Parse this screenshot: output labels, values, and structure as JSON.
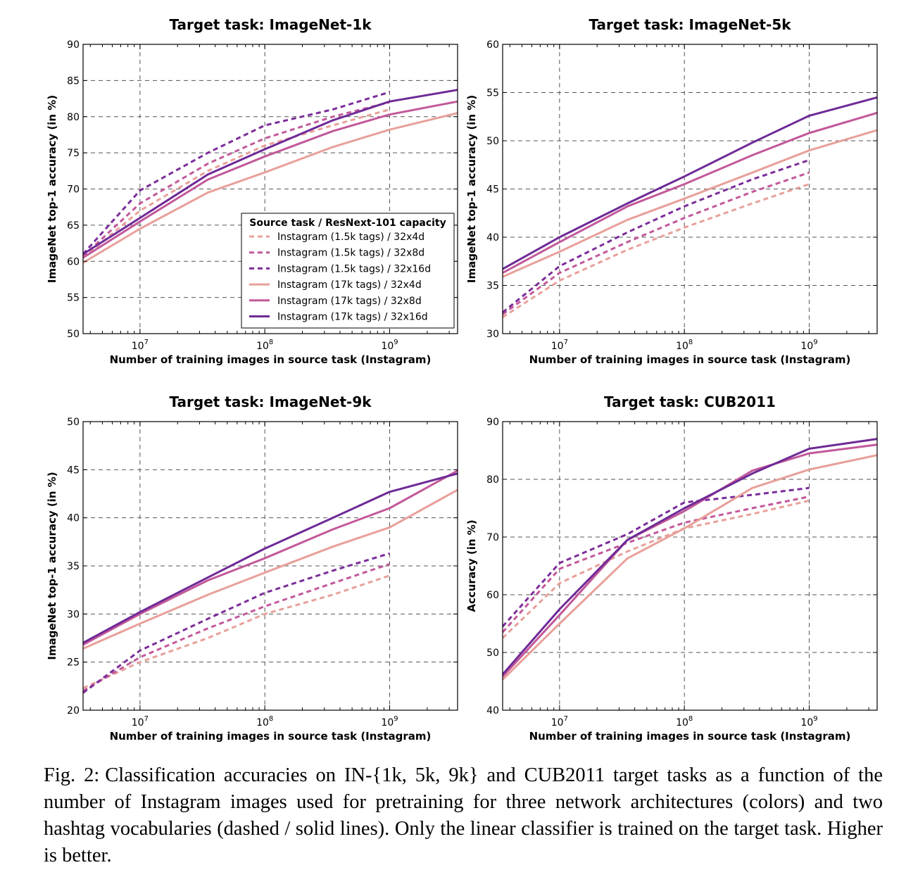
{
  "chart_data": [
    {
      "type": "line",
      "title": "Target task: ImageNet-1k",
      "xlabel": "Number of training images in source task (Instagram)",
      "ylabel": "ImageNet top-1 accuracy (in %)",
      "x_scale": "log",
      "xlim": [
        3500000,
        3500000000
      ],
      "ylim": [
        50,
        90
      ],
      "x_ticks": [
        10000000,
        100000000,
        1000000000
      ],
      "x_tick_labels": [
        [
          "10",
          "7"
        ],
        [
          "10",
          "8"
        ],
        [
          "10",
          "9"
        ]
      ],
      "y_ticks": [
        50,
        55,
        60,
        65,
        70,
        75,
        80,
        85,
        90
      ],
      "grid": true,
      "legend": {
        "title": "Source task / ResNext-101 capacity",
        "placement": "lower right",
        "entries": [
          "Instagram (1.5k tags) / 32x4d",
          "Instagram (1.5k tags) / 32x8d",
          "Instagram (1.5k tags) / 32x16d",
          "Instagram (17k tags) / 32x4d",
          "Instagram (17k tags) / 32x8d",
          "Instagram (17k tags) / 32x16d"
        ]
      },
      "series": [
        {
          "name": "Instagram (1.5k tags) / 32x4d",
          "x": [
            3500000,
            10000000,
            35000000,
            100000000,
            350000000,
            1000000000
          ],
          "y": [
            60.5,
            67.0,
            72.5,
            76.0,
            78.8,
            81.0
          ]
        },
        {
          "name": "Instagram (1.5k tags) / 32x8d",
          "x": [
            3500000,
            10000000,
            35000000,
            100000000,
            350000000,
            1000000000
          ],
          "y": [
            60.7,
            68.0,
            73.5,
            77.0,
            80.0,
            82.0
          ]
        },
        {
          "name": "Instagram (1.5k tags) / 32x16d",
          "x": [
            3500000,
            10000000,
            35000000,
            100000000,
            350000000,
            1000000000
          ],
          "y": [
            61.0,
            69.8,
            75.0,
            78.8,
            81.0,
            83.4
          ]
        },
        {
          "name": "Instagram (17k tags) / 32x4d",
          "x": [
            3500000,
            10000000,
            35000000,
            100000000,
            350000000,
            1000000000,
            3500000000
          ],
          "y": [
            59.8,
            64.5,
            69.5,
            72.3,
            75.8,
            78.2,
            80.5
          ]
        },
        {
          "name": "Instagram (17k tags) / 32x8d",
          "x": [
            3500000,
            10000000,
            35000000,
            100000000,
            350000000,
            1000000000,
            3500000000
          ],
          "y": [
            60.5,
            65.5,
            71.3,
            74.5,
            78.0,
            80.3,
            82.1
          ]
        },
        {
          "name": "Instagram (17k tags) / 32x16d",
          "x": [
            3500000,
            10000000,
            35000000,
            100000000,
            350000000,
            1000000000,
            3500000000
          ],
          "y": [
            61.0,
            66.0,
            72.0,
            75.5,
            79.5,
            82.1,
            83.7
          ]
        }
      ]
    },
    {
      "type": "line",
      "title": "Target task: ImageNet-5k",
      "xlabel": "Number of training images in source task (Instagram)",
      "ylabel": "ImageNet top-1 accuracy (in %)",
      "x_scale": "log",
      "xlim": [
        3500000,
        3500000000
      ],
      "ylim": [
        30,
        60
      ],
      "x_ticks": [
        10000000,
        100000000,
        1000000000
      ],
      "x_tick_labels": [
        [
          "10",
          "7"
        ],
        [
          "10",
          "8"
        ],
        [
          "10",
          "9"
        ]
      ],
      "y_ticks": [
        30,
        35,
        40,
        45,
        50,
        55,
        60
      ],
      "grid": true,
      "series": [
        {
          "name": "Instagram (1.5k tags) / 32x4d",
          "x": [
            3500000,
            10000000,
            35000000,
            100000000,
            350000000,
            1000000000
          ],
          "y": [
            31.7,
            35.5,
            38.7,
            41.0,
            43.5,
            45.5
          ]
        },
        {
          "name": "Instagram (1.5k tags) / 32x8d",
          "x": [
            3500000,
            10000000,
            35000000,
            100000000,
            350000000,
            1000000000
          ],
          "y": [
            32.0,
            36.3,
            39.5,
            42.0,
            44.7,
            46.7
          ]
        },
        {
          "name": "Instagram (1.5k tags) / 32x16d",
          "x": [
            3500000,
            10000000,
            35000000,
            100000000,
            350000000,
            1000000000
          ],
          "y": [
            32.2,
            37.0,
            40.5,
            43.2,
            46.0,
            48.0
          ]
        },
        {
          "name": "Instagram (17k tags) / 32x4d",
          "x": [
            3500000,
            10000000,
            35000000,
            100000000,
            350000000,
            1000000000,
            3500000000
          ],
          "y": [
            35.9,
            38.5,
            41.8,
            44.0,
            46.7,
            49.0,
            51.1
          ]
        },
        {
          "name": "Instagram (17k tags) / 32x8d",
          "x": [
            3500000,
            10000000,
            35000000,
            100000000,
            350000000,
            1000000000,
            3500000000
          ],
          "y": [
            36.3,
            39.5,
            43.2,
            45.5,
            48.5,
            50.8,
            52.9
          ]
        },
        {
          "name": "Instagram (17k tags) / 32x16d",
          "x": [
            3500000,
            10000000,
            35000000,
            100000000,
            350000000,
            1000000000,
            3500000000
          ],
          "y": [
            36.7,
            40.0,
            43.5,
            46.3,
            49.8,
            52.6,
            54.5
          ]
        }
      ]
    },
    {
      "type": "line",
      "title": "Target task: ImageNet-9k",
      "xlabel": "Number of training images in source task (Instagram)",
      "ylabel": "ImageNet top-1 accuracy (in %)",
      "x_scale": "log",
      "xlim": [
        3500000,
        3500000000
      ],
      "ylim": [
        20,
        50
      ],
      "x_ticks": [
        10000000,
        100000000,
        1000000000
      ],
      "x_tick_labels": [
        [
          "10",
          "7"
        ],
        [
          "10",
          "8"
        ],
        [
          "10",
          "9"
        ]
      ],
      "y_ticks": [
        20,
        25,
        30,
        35,
        40,
        45,
        50
      ],
      "grid": true,
      "series": [
        {
          "name": "Instagram (1.5k tags) / 32x4d",
          "x": [
            3500000,
            10000000,
            35000000,
            100000000,
            350000000,
            1000000000
          ],
          "y": [
            22.3,
            25.0,
            27.5,
            30.0,
            32.0,
            34.0
          ]
        },
        {
          "name": "Instagram (1.5k tags) / 32x8d",
          "x": [
            3500000,
            10000000,
            35000000,
            100000000,
            350000000,
            1000000000
          ],
          "y": [
            22.0,
            25.5,
            28.5,
            30.8,
            33.2,
            35.2
          ]
        },
        {
          "name": "Instagram (1.5k tags) / 32x16d",
          "x": [
            3500000,
            10000000,
            35000000,
            100000000,
            350000000,
            1000000000
          ],
          "y": [
            21.8,
            26.2,
            29.5,
            32.2,
            34.5,
            36.3
          ]
        },
        {
          "name": "Instagram (17k tags) / 32x4d",
          "x": [
            3500000,
            10000000,
            35000000,
            100000000,
            350000000,
            1000000000,
            3500000000
          ],
          "y": [
            26.4,
            29.0,
            32.0,
            34.3,
            37.0,
            39.0,
            42.9
          ]
        },
        {
          "name": "Instagram (17k tags) / 32x8d",
          "x": [
            3500000,
            10000000,
            35000000,
            100000000,
            350000000,
            1000000000,
            3500000000
          ],
          "y": [
            26.8,
            30.0,
            33.5,
            35.8,
            38.8,
            41.0,
            44.9
          ]
        },
        {
          "name": "Instagram (17k tags) / 32x16d",
          "x": [
            3500000,
            10000000,
            35000000,
            100000000,
            350000000,
            1000000000,
            3500000000
          ],
          "y": [
            27.0,
            30.2,
            33.8,
            36.8,
            40.0,
            42.7,
            44.6
          ]
        }
      ]
    },
    {
      "type": "line",
      "title": "Target task: CUB2011",
      "xlabel": "Number of training images in source task (Instagram)",
      "ylabel": "Accuracy (in %)",
      "x_scale": "log",
      "xlim": [
        3500000,
        3500000000
      ],
      "ylim": [
        40,
        90
      ],
      "x_ticks": [
        10000000,
        100000000,
        1000000000
      ],
      "x_tick_labels": [
        [
          "10",
          "7"
        ],
        [
          "10",
          "8"
        ],
        [
          "10",
          "9"
        ]
      ],
      "y_ticks": [
        40,
        50,
        60,
        70,
        80,
        90
      ],
      "grid": true,
      "series": [
        {
          "name": "Instagram (1.5k tags) / 32x4d",
          "x": [
            3500000,
            10000000,
            35000000,
            100000000,
            350000000,
            1000000000
          ],
          "y": [
            52.5,
            62.0,
            67.5,
            71.5,
            74.0,
            76.3
          ]
        },
        {
          "name": "Instagram (1.5k tags) / 32x8d",
          "x": [
            3500000,
            10000000,
            35000000,
            100000000,
            350000000,
            1000000000
          ],
          "y": [
            53.5,
            64.5,
            69.0,
            72.5,
            75.0,
            77.0
          ]
        },
        {
          "name": "Instagram (1.5k tags) / 32x16d",
          "x": [
            3500000,
            10000000,
            35000000,
            100000000,
            350000000,
            1000000000
          ],
          "y": [
            54.5,
            65.5,
            70.5,
            76.0,
            77.3,
            78.5
          ]
        },
        {
          "name": "Instagram (17k tags) / 32x4d",
          "x": [
            3500000,
            10000000,
            35000000,
            100000000,
            350000000,
            1000000000,
            3500000000
          ],
          "y": [
            45.3,
            55.0,
            66.3,
            71.5,
            78.5,
            81.7,
            84.2
          ]
        },
        {
          "name": "Instagram (17k tags) / 32x8d",
          "x": [
            3500000,
            10000000,
            35000000,
            100000000,
            350000000,
            1000000000,
            3500000000
          ],
          "y": [
            45.8,
            56.5,
            69.5,
            74.5,
            81.5,
            84.5,
            86.0
          ]
        },
        {
          "name": "Instagram (17k tags) / 32x16d",
          "x": [
            3500000,
            10000000,
            35000000,
            100000000,
            350000000,
            1000000000,
            3500000000
          ],
          "y": [
            46.2,
            57.5,
            69.5,
            75.0,
            81.0,
            85.3,
            87.0
          ]
        }
      ]
    }
  ],
  "series_styles": [
    {
      "color": "#e8a09a",
      "dash": true
    },
    {
      "color": "#c2589a",
      "dash": true
    },
    {
      "color": "#7b2d9a",
      "dash": true
    },
    {
      "color": "#e8a09a",
      "dash": false
    },
    {
      "color": "#c2589a",
      "dash": false
    },
    {
      "color": "#6e2a96",
      "dash": false
    }
  ],
  "caption": {
    "label": "Fig. 2:",
    "text": "Classification accuracies on IN-{1k, 5k, 9k} and CUB2011 target tasks as a function of the number of Instagram images used for pretraining for three network architectures (colors) and two hashtag vocabularies (dashed / solid lines). Only the linear classifier is trained on the target task. Higher is better."
  }
}
